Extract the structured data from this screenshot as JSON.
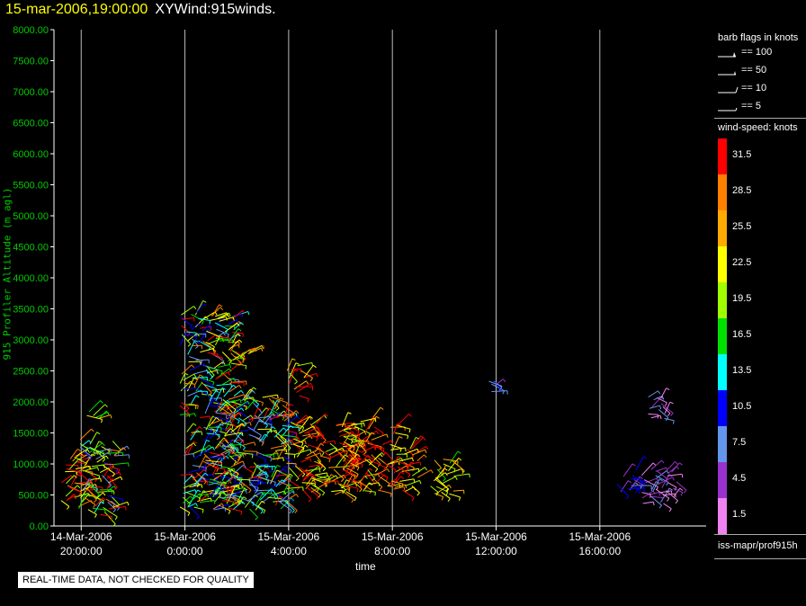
{
  "header": {
    "date": "15-mar-2006,19:00:00",
    "name": "XYWind:915winds."
  },
  "chart_data": {
    "type": "scatter",
    "ylabel": "915 Profiler Altitude (m agl)",
    "xlabel": "time",
    "ylim": [
      0,
      8000
    ],
    "y_ticks": [
      "0.00",
      "500.00",
      "1000.00",
      "1500.00",
      "2000.00",
      "2500.00",
      "3000.00",
      "3500.00",
      "4000.00",
      "4500.00",
      "5000.00",
      "5500.00",
      "6000.00",
      "6500.00",
      "7000.00",
      "7500.00",
      "8000.00"
    ],
    "x_ticks": [
      {
        "line1": "14-Mar-2006",
        "line2": "20:00:00",
        "hour": 20
      },
      {
        "line1": "15-Mar-2006",
        "line2": "0:00:00",
        "hour": 24
      },
      {
        "line1": "15-Mar-2006",
        "line2": "4:00:00",
        "hour": 28
      },
      {
        "line1": "15-Mar-2006",
        "line2": "8:00:00",
        "hour": 32
      },
      {
        "line1": "15-Mar-2006",
        "line2": "12:00:00",
        "hour": 36
      },
      {
        "line1": "15-Mar-2006",
        "line2": "16:00:00",
        "hour": 40
      }
    ],
    "xlim_hours": [
      18.95,
      44.1
    ],
    "grid": "vertical lines at major x ticks",
    "note_barbs": "wind barbs plotted; colour encodes wind-speed (knots)",
    "clusters": [
      {
        "t0": 19.1,
        "t1": 20.4,
        "z0": 300,
        "z1": 1150,
        "speed": "high"
      },
      {
        "t0": 19.9,
        "t1": 21.3,
        "z0": 150,
        "z1": 1400,
        "speed": "mixed"
      },
      {
        "t0": 20.2,
        "t1": 20.8,
        "z0": 1700,
        "z1": 1950,
        "speed": "mid"
      },
      {
        "t0": 23.8,
        "t1": 25.9,
        "z0": 250,
        "z1": 3500,
        "speed": "mixed"
      },
      {
        "t0": 24.9,
        "t1": 27.9,
        "z0": 250,
        "z1": 2100,
        "speed": "mixed"
      },
      {
        "t0": 25.9,
        "t1": 26.8,
        "z0": 2700,
        "z1": 2850,
        "speed": "high"
      },
      {
        "t0": 27.8,
        "t1": 30.5,
        "z0": 500,
        "z1": 1700,
        "speed": "high"
      },
      {
        "t0": 27.9,
        "t1": 28.6,
        "z0": 2100,
        "z1": 2600,
        "speed": "high"
      },
      {
        "t0": 30.0,
        "t1": 32.2,
        "z0": 550,
        "z1": 1700,
        "speed": "high"
      },
      {
        "t0": 32.2,
        "t1": 33.0,
        "z0": 550,
        "z1": 1300,
        "speed": "high"
      },
      {
        "t0": 33.4,
        "t1": 34.4,
        "z0": 500,
        "z1": 1100,
        "speed": "mid"
      },
      {
        "t0": 35.4,
        "t1": 36.0,
        "z0": 2150,
        "z1": 2400,
        "speed": "low"
      },
      {
        "t0": 40.6,
        "t1": 41.5,
        "z0": 500,
        "z1": 900,
        "speed": "low"
      },
      {
        "t0": 41.6,
        "t1": 43.0,
        "z0": 350,
        "z1": 1000,
        "speed": "vlow"
      },
      {
        "t0": 41.7,
        "t1": 42.6,
        "z0": 1700,
        "z1": 2100,
        "speed": "vlow"
      }
    ]
  },
  "legend": {
    "barb_title": "barb flags in knots",
    "barbs": [
      "== 100",
      "== 50",
      "== 10",
      "== 5"
    ],
    "speed_title": "wind-speed: knots",
    "scale": [
      {
        "label": "31.5",
        "color": "#ff0000"
      },
      {
        "label": "28.5",
        "color": "#ff8000"
      },
      {
        "label": "25.5",
        "color": "#ffaa00"
      },
      {
        "label": "22.5",
        "color": "#ffff00"
      },
      {
        "label": "19.5",
        "color": "#a0ff00"
      },
      {
        "label": "16.5",
        "color": "#00e000"
      },
      {
        "label": "13.5",
        "color": "#00ffff"
      },
      {
        "label": "10.5",
        "color": "#0000ff"
      },
      {
        "label": "7.5",
        "color": "#6495ed"
      },
      {
        "label": "4.5",
        "color": "#9932cc"
      },
      {
        "label": "1.5",
        "color": "#ee82ee"
      }
    ],
    "source": "iss-mapr/prof915h"
  },
  "qc_notice": "REAL-TIME DATA, NOT CHECKED FOR QUALITY"
}
